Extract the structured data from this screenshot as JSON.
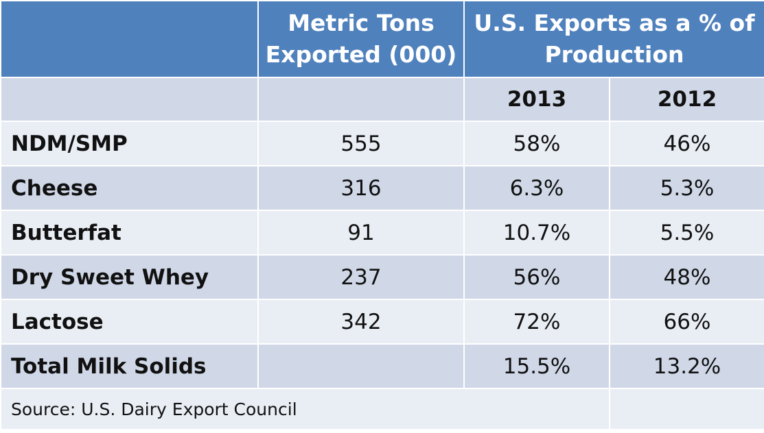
{
  "header": {
    "col1": "",
    "col2": "Metric Tons Exported (000)",
    "col3": "U.S. Exports as a % of Production"
  },
  "years": [
    "2013",
    "2012"
  ],
  "rows": [
    {
      "product": "NDM/SMP",
      "tons": "555",
      "pct_2013": "58%",
      "pct_2012": "46%"
    },
    {
      "product": "Cheese",
      "tons": "316",
      "pct_2013": "6.3%",
      "pct_2012": "5.3%"
    },
    {
      "product": "Butterfat",
      "tons": "91",
      "pct_2013": "10.7%",
      "pct_2012": "5.5%"
    },
    {
      "product": "Dry Sweet Whey",
      "tons": "237",
      "pct_2013": "56%",
      "pct_2012": "48%"
    },
    {
      "product": "Lactose",
      "tons": "342",
      "pct_2013": "72%",
      "pct_2012": "66%"
    },
    {
      "product": "Total Milk Solids",
      "tons": "",
      "pct_2013": "15.5%",
      "pct_2012": "13.2%"
    }
  ],
  "source": "Source: U.S. Dairy Export Council",
  "colors": {
    "header_bg": "#4f81bd",
    "row_dark": "#d0d8e8",
    "row_light": "#e9edf4"
  }
}
